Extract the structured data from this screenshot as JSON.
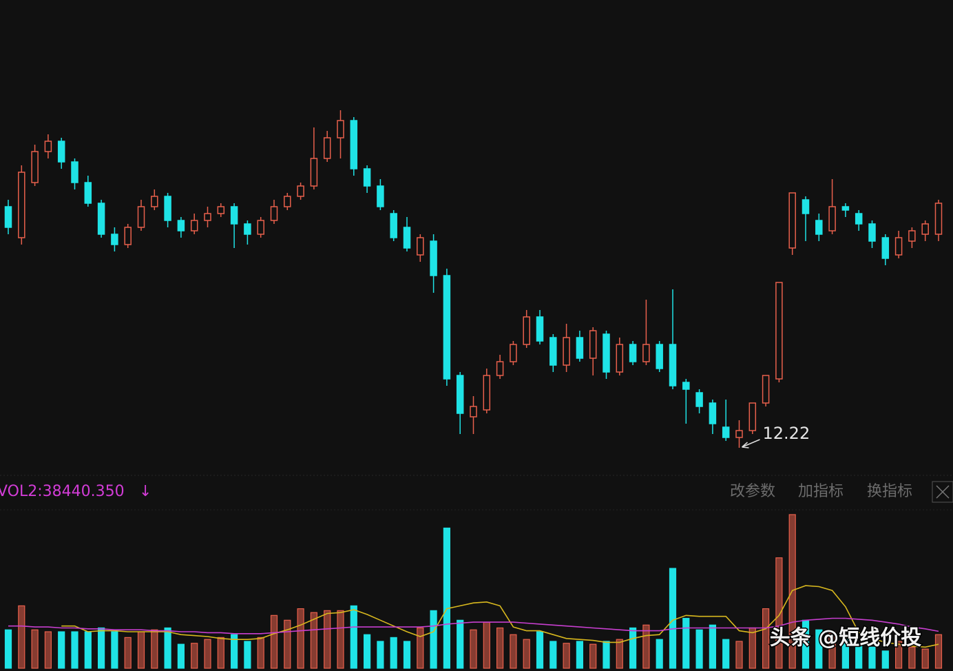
{
  "chart_data": [
    {
      "type": "candlestick",
      "ylim": [
        11.98,
        17.42
      ],
      "up_color": "#e8604c",
      "down_color": "#1fe3e6",
      "low_annotation": "12.22",
      "open": [
        15.02,
        14.66,
        15.3,
        15.66,
        15.78,
        15.54,
        15.3,
        15.06,
        14.7,
        14.58,
        14.78,
        15.02,
        15.14,
        14.86,
        14.74,
        14.86,
        14.94,
        15.02,
        14.82,
        14.7,
        14.86,
        15.02,
        15.14,
        15.26,
        15.58,
        15.82,
        16.02,
        15.46,
        15.26,
        14.94,
        14.78,
        14.46,
        14.62,
        14.22,
        13.06,
        12.58,
        12.66,
        13.06,
        13.22,
        13.42,
        13.74,
        13.5,
        13.18,
        13.5,
        13.26,
        13.54,
        13.1,
        13.42,
        13.22,
        13.42,
        13.42,
        12.98,
        12.86,
        12.74,
        12.46,
        12.34,
        12.42,
        12.74,
        13.02,
        14.54,
        15.1,
        14.86,
        14.74,
        15.02,
        14.94,
        14.82,
        14.66,
        14.46,
        14.62,
        14.7,
        14.7
      ],
      "high": [
        15.1,
        15.5,
        15.74,
        15.86,
        15.82,
        15.58,
        15.38,
        15.1,
        14.78,
        14.82,
        15.1,
        15.22,
        15.18,
        14.9,
        14.94,
        15.02,
        15.06,
        15.06,
        14.86,
        14.9,
        15.1,
        15.18,
        15.3,
        15.94,
        15.9,
        16.14,
        16.06,
        15.5,
        15.34,
        14.98,
        14.9,
        14.7,
        14.7,
        14.3,
        13.1,
        12.82,
        13.14,
        13.3,
        13.46,
        13.82,
        13.82,
        13.54,
        13.66,
        13.58,
        13.62,
        13.58,
        13.5,
        13.46,
        13.94,
        13.46,
        14.06,
        13.02,
        12.9,
        12.78,
        12.78,
        12.54,
        12.74,
        13.06,
        14.14,
        15.18,
        15.14,
        14.94,
        15.34,
        15.06,
        14.98,
        14.86,
        14.7,
        14.74,
        14.78,
        14.86,
        15.1
      ],
      "low": [
        14.7,
        14.58,
        15.26,
        15.58,
        15.46,
        15.22,
        15.02,
        14.66,
        14.5,
        14.54,
        14.74,
        14.98,
        14.78,
        14.66,
        14.7,
        14.78,
        14.9,
        14.54,
        14.58,
        14.66,
        14.82,
        14.98,
        15.1,
        15.22,
        15.54,
        15.58,
        15.38,
        15.18,
        14.98,
        14.62,
        14.5,
        14.38,
        14.02,
        12.94,
        12.38,
        12.38,
        12.62,
        13.02,
        13.18,
        13.38,
        13.42,
        13.1,
        13.1,
        13.22,
        13.06,
        13.02,
        13.06,
        13.18,
        13.18,
        13.1,
        12.9,
        12.5,
        12.62,
        12.38,
        12.3,
        12.22,
        12.38,
        12.7,
        12.98,
        14.46,
        14.62,
        14.62,
        14.7,
        14.9,
        14.74,
        14.54,
        14.34,
        14.42,
        14.54,
        14.62,
        14.62
      ],
      "close": [
        14.78,
        15.42,
        15.66,
        15.78,
        15.54,
        15.3,
        15.06,
        14.7,
        14.58,
        14.78,
        15.02,
        15.14,
        14.86,
        14.74,
        14.86,
        14.94,
        15.02,
        14.82,
        14.7,
        14.86,
        15.02,
        15.14,
        15.26,
        15.58,
        15.82,
        16.02,
        15.46,
        15.26,
        15.02,
        14.66,
        14.54,
        14.66,
        14.22,
        13.02,
        12.62,
        12.7,
        13.06,
        13.22,
        13.42,
        13.74,
        13.46,
        13.18,
        13.5,
        13.26,
        13.58,
        13.1,
        13.42,
        13.22,
        13.42,
        13.14,
        12.94,
        12.9,
        12.7,
        12.5,
        12.34,
        12.42,
        12.74,
        13.06,
        14.14,
        15.18,
        14.94,
        14.7,
        15.02,
        14.98,
        14.82,
        14.62,
        14.42,
        14.66,
        14.74,
        14.82,
        15.06
      ]
    },
    {
      "type": "bar",
      "ylim": [
        0,
        165000
      ],
      "indicator_label": "VOL2:38440.350",
      "indicator_arrow": "↓",
      "label_color": "#d23cd6",
      "values": [
        40000,
        65000,
        40000,
        38000,
        38000,
        38000,
        38000,
        42000,
        38000,
        32000,
        38000,
        40000,
        42000,
        25000,
        26000,
        30000,
        32000,
        35000,
        28000,
        32000,
        55000,
        50000,
        62000,
        58000,
        60000,
        60000,
        65000,
        35000,
        28000,
        32000,
        28000,
        42000,
        60000,
        146000,
        50000,
        40000,
        48000,
        42000,
        35000,
        30000,
        38000,
        28000,
        26000,
        28000,
        25000,
        28000,
        30000,
        42000,
        45000,
        30000,
        104000,
        52000,
        40000,
        45000,
        30000,
        28000,
        42000,
        62000,
        115000,
        160000,
        50000,
        40000,
        38000,
        30000,
        25000,
        22000,
        18000,
        28000,
        22000,
        20000,
        35000
      ],
      "lines": [
        {
          "color": "#d8b81e",
          "values": [
            null,
            null,
            null,
            null,
            44000,
            44000,
            38000,
            39000,
            39000,
            38000,
            38000,
            38000,
            38000,
            35000,
            34000,
            33000,
            31000,
            30000,
            30000,
            31000,
            36000,
            40000,
            45000,
            51000,
            57000,
            58000,
            61000,
            56000,
            50000,
            44000,
            38000,
            33000,
            38000,
            62000,
            65000,
            68000,
            69000,
            65000,
            43000,
            39000,
            39000,
            35000,
            31000,
            30000,
            29000,
            27000,
            27000,
            31000,
            34000,
            35000,
            50000,
            55000,
            54000,
            54000,
            54000,
            39000,
            37000,
            41000,
            55000,
            81000,
            86000,
            85000,
            81000,
            64000,
            37000,
            31000,
            27000,
            25000,
            23000,
            22000,
            25000
          ]
        },
        {
          "color": "#c83fd0",
          "values": [
            44000,
            44000,
            43000,
            43000,
            42000,
            42000,
            41000,
            41000,
            40000,
            40000,
            40000,
            39000,
            39000,
            38000,
            38000,
            37000,
            37000,
            36000,
            36000,
            36000,
            37000,
            38000,
            39000,
            40000,
            41000,
            42000,
            43000,
            43000,
            43000,
            43000,
            43000,
            43000,
            44000,
            46000,
            47000,
            48000,
            48000,
            48000,
            48000,
            47000,
            46000,
            45000,
            44000,
            43000,
            42000,
            41000,
            40000,
            39000,
            39000,
            39000,
            41000,
            42000,
            42000,
            42000,
            42000,
            42000,
            42000,
            42000,
            44000,
            48000,
            50000,
            51000,
            52000,
            52000,
            51000,
            50000,
            48000,
            46000,
            43000,
            41000,
            38440.35
          ]
        }
      ]
    }
  ],
  "toolbar": {
    "buttons": [
      "改参数",
      "加指标",
      "换指标"
    ]
  },
  "watermark": "头条 @短线价投"
}
